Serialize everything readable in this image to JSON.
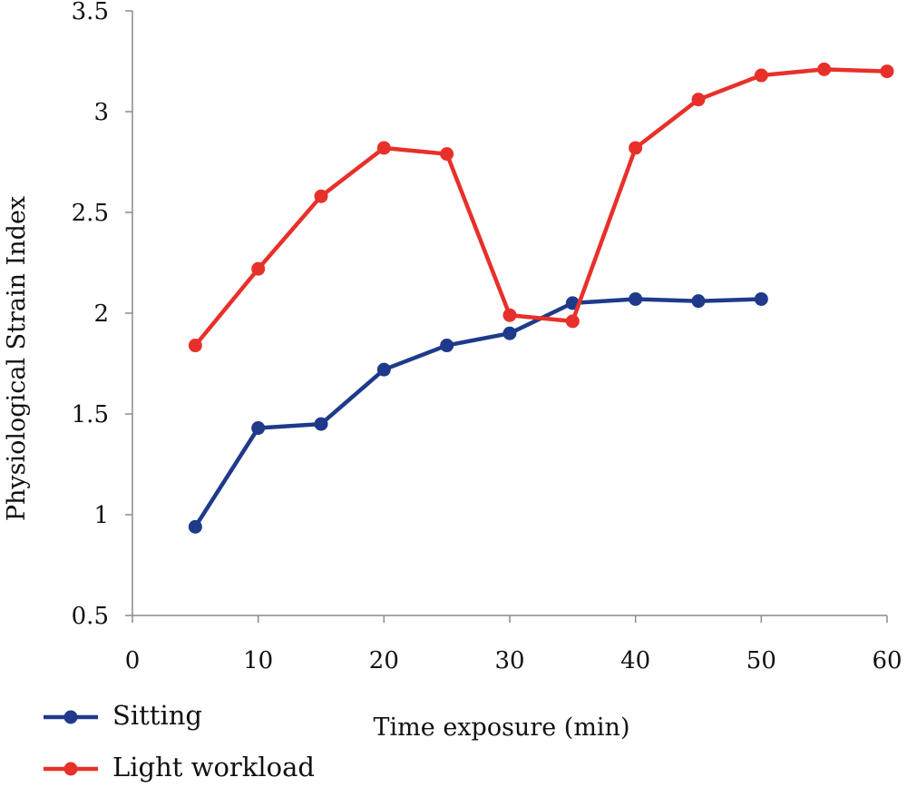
{
  "chart_data": {
    "type": "line",
    "title": "",
    "xlabel": "Time exposure (min)",
    "ylabel": "Physiological Strain Index",
    "xlim": [
      0,
      60
    ],
    "ylim": [
      0.5,
      3.5
    ],
    "xticks": [
      0,
      10,
      20,
      30,
      40,
      50,
      60
    ],
    "yticks": [
      0.5,
      1,
      1.5,
      2,
      2.5,
      3,
      3.5
    ],
    "xtick_labels": [
      "0",
      "10",
      "20",
      "30",
      "40",
      "50",
      "60"
    ],
    "ytick_labels": [
      "0.5",
      "1",
      "1.5",
      "2",
      "2.5",
      "3",
      "3.5"
    ],
    "grid": false,
    "legend_position": "bottom-left",
    "series": [
      {
        "name": "Sitting",
        "color": "#1f3a8a",
        "x": [
          5,
          10,
          15,
          20,
          25,
          30,
          35,
          40,
          45,
          50
        ],
        "values": [
          0.94,
          1.43,
          1.45,
          1.72,
          1.84,
          1.9,
          2.05,
          2.07,
          2.06,
          2.07
        ]
      },
      {
        "name": "Light workload",
        "color": "#e8302a",
        "x": [
          5,
          10,
          15,
          20,
          25,
          30,
          35,
          40,
          45,
          50,
          55,
          60
        ],
        "values": [
          1.84,
          2.22,
          2.58,
          2.82,
          2.79,
          1.99,
          1.96,
          2.82,
          3.06,
          3.18,
          3.21,
          3.2
        ]
      }
    ]
  }
}
